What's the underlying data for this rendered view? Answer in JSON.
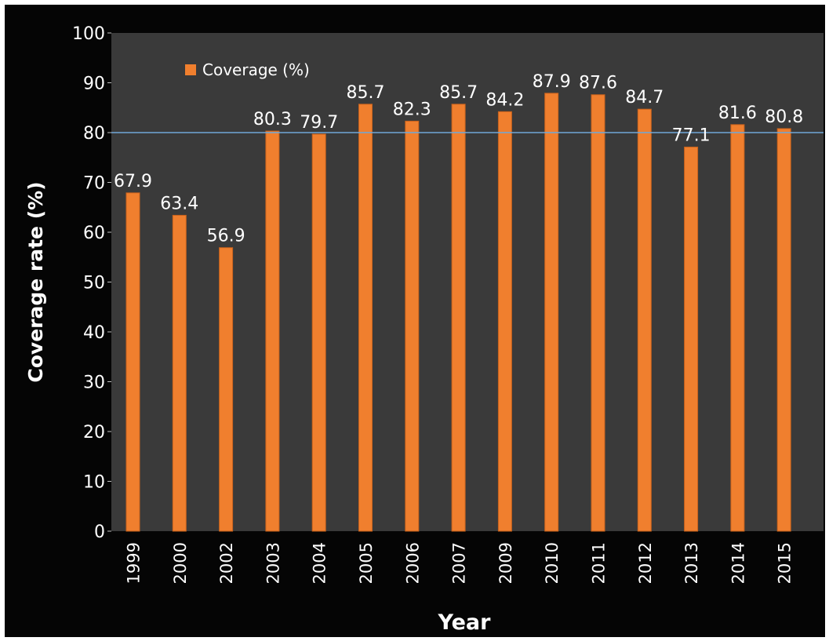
{
  "chart_data": {
    "type": "bar",
    "title": "",
    "xlabel": "Year",
    "ylabel": "Coverage rate (%)",
    "categories": [
      "1999",
      "2000",
      "2002",
      "2003",
      "2004",
      "2005",
      "2006",
      "2007",
      "2009",
      "2010",
      "2011",
      "2012",
      "2013",
      "2014",
      "2015"
    ],
    "series": [
      {
        "name": "Coverage (%)",
        "values": [
          67.9,
          63.4,
          56.9,
          80.3,
          79.7,
          85.7,
          82.3,
          85.7,
          84.2,
          87.9,
          87.6,
          84.7,
          77.1,
          81.6,
          80.8
        ],
        "labels": [
          "67.9",
          "63.4",
          "56.9",
          "80.3",
          "79.7",
          "85.7",
          "82.3",
          "85.7",
          "84.2",
          "87.9",
          "87.6",
          "84.7",
          "77.1",
          "81.6",
          "80.8"
        ]
      }
    ],
    "ylim": [
      0,
      100
    ],
    "yticks": [
      "0",
      "10",
      "20",
      "30",
      "40",
      "50",
      "60",
      "70",
      "80",
      "90",
      "100"
    ],
    "reference_line": 80,
    "grid": false,
    "legend_position": "top-left",
    "colors": {
      "bar": "#f07f2e",
      "plot_background": "#3a3a3a",
      "frame_background": "#050505",
      "text": "#ffffff",
      "reference_line": "#6fa8d8"
    }
  }
}
